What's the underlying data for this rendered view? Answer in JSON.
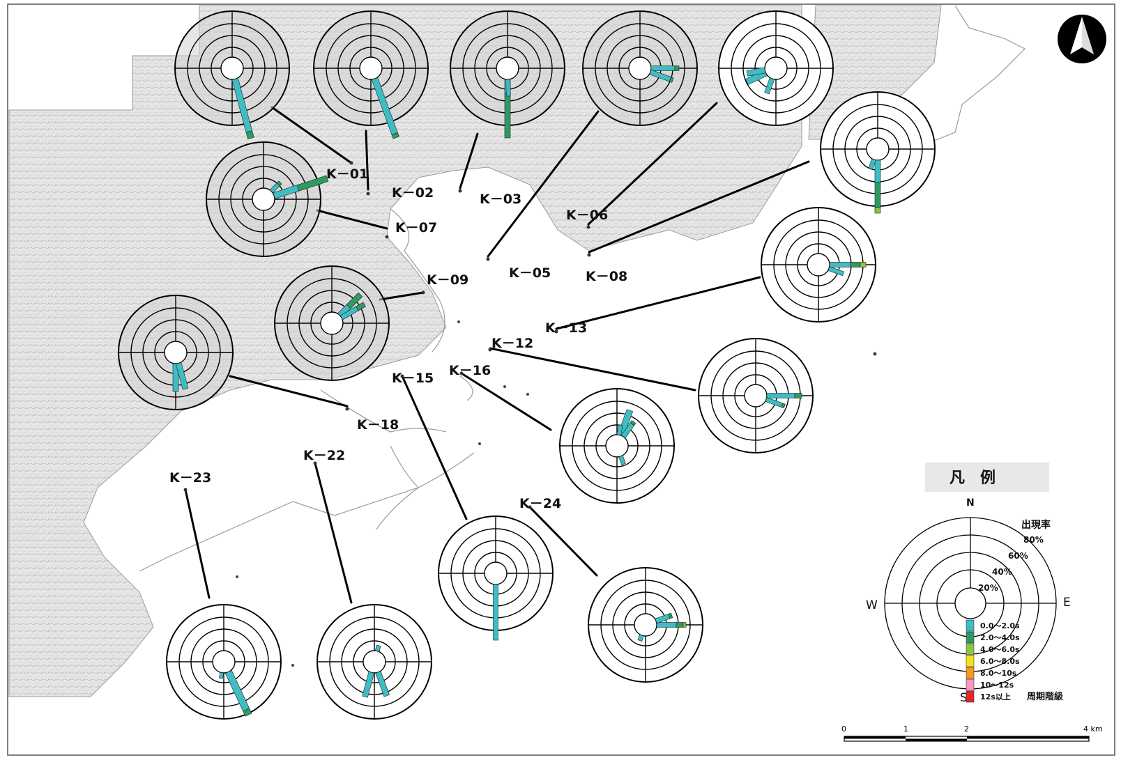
{
  "north_arrow": {
    "icon": "north-arrow-icon"
  },
  "stations": [
    {
      "id": "K-01",
      "label": "K－01"
    },
    {
      "id": "K-02",
      "label": "K－02"
    },
    {
      "id": "K-03",
      "label": "K－03"
    },
    {
      "id": "K-05",
      "label": "K－05"
    },
    {
      "id": "K-06",
      "label": "K－06"
    },
    {
      "id": "K-07",
      "label": "K－07"
    },
    {
      "id": "K-08",
      "label": "K－08"
    },
    {
      "id": "K-09",
      "label": "K－09"
    },
    {
      "id": "K-12",
      "label": "K－12"
    },
    {
      "id": "K-13",
      "label": "K－13"
    },
    {
      "id": "K-15",
      "label": "K－15"
    },
    {
      "id": "K-16",
      "label": "K－16"
    },
    {
      "id": "K-18",
      "label": "K－18"
    },
    {
      "id": "K-22",
      "label": "K－22"
    },
    {
      "id": "K-23",
      "label": "K－23"
    },
    {
      "id": "K-24",
      "label": "K－24"
    }
  ],
  "legend": {
    "title": "凡　例",
    "north": "N",
    "south": "S",
    "east": "E",
    "west": "W",
    "rate_label": "出現率",
    "rings": [
      "80%",
      "60%",
      "40%",
      "20%"
    ],
    "period_label": "周期階級",
    "classes": [
      {
        "label": "0.0～2.0s",
        "color": "#3fbcc4"
      },
      {
        "label": "2.0～4.0s",
        "color": "#2e9a62"
      },
      {
        "label": "4.0～6.0s",
        "color": "#8cc63f"
      },
      {
        "label": "6.0～8.0s",
        "color": "#f2e21b"
      },
      {
        "label": "8.0～10s",
        "color": "#f39a1e"
      },
      {
        "label": "10～12s",
        "color": "#f49ac2"
      },
      {
        "label": "12s以上",
        "color": "#e3262b"
      }
    ]
  },
  "scale_bar": {
    "ticks": [
      "0",
      "1",
      "2",
      "4 km"
    ]
  }
}
